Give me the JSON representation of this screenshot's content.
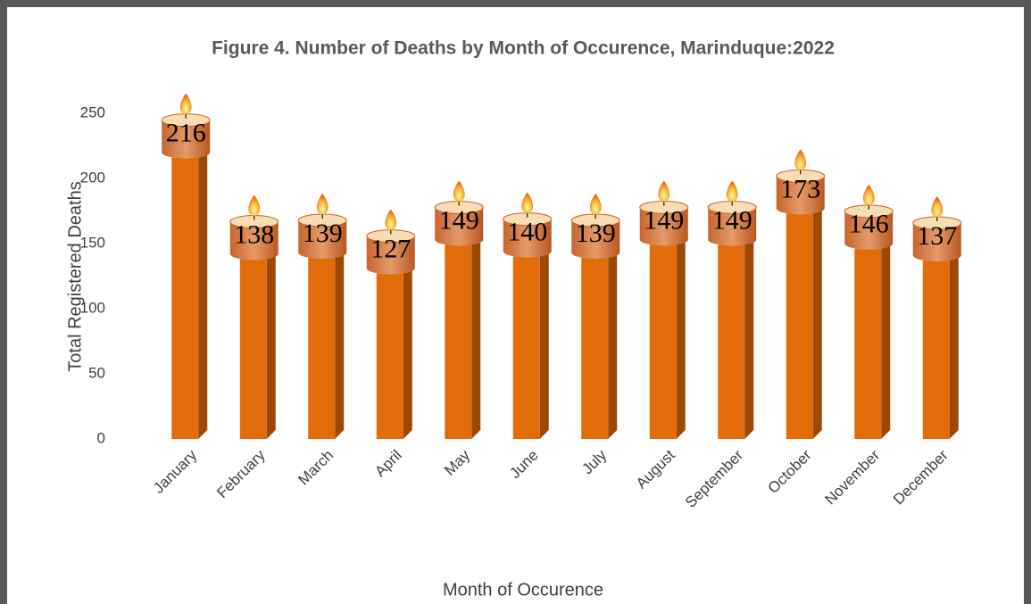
{
  "chart_data": {
    "type": "bar",
    "title": "Figure 4. Number of Deaths by Month of Occurence, Marinduque:2022",
    "x_label": "Month of Occurence",
    "y_label": "Total Registered Deaths",
    "categories": [
      "January",
      "February",
      "March",
      "April",
      "May",
      "June",
      "July",
      "August",
      "September",
      "October",
      "November",
      "December"
    ],
    "values": [
      216,
      138,
      139,
      127,
      149,
      140,
      139,
      149,
      149,
      173,
      146,
      137
    ],
    "color": "#e36c0a",
    "ylim": [
      0,
      250
    ],
    "yticks": [
      0,
      50,
      100,
      150,
      200,
      250
    ],
    "grid": false
  }
}
